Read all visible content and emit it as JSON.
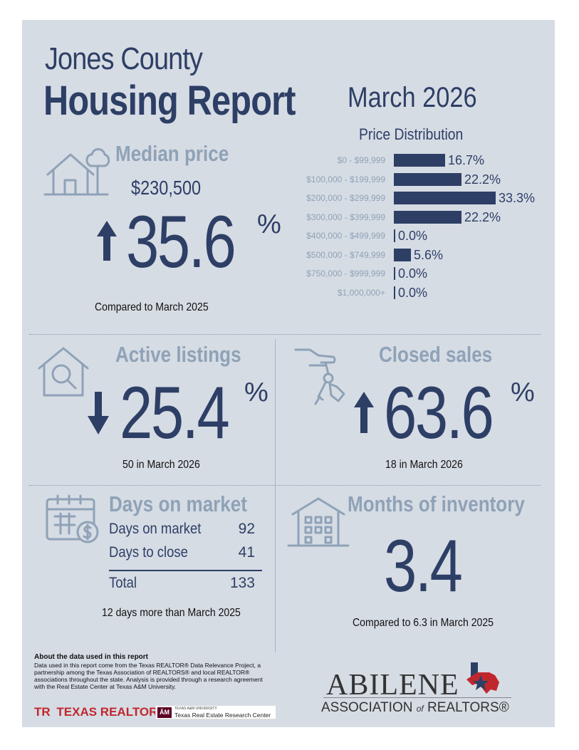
{
  "header": {
    "county": "Jones County",
    "report": "Housing Report",
    "period": "March 2026"
  },
  "median_price": {
    "title": "Median price",
    "value": "$230,500",
    "change": "35.6",
    "pct_sign": "%",
    "direction": "up",
    "note": "Compared to March 2025"
  },
  "chart_data": {
    "type": "bar",
    "orientation": "horizontal",
    "title": "Price Distribution",
    "categories": [
      "$0 - $99,999",
      "$100,000 - $199,999",
      "$200,000 - $299,999",
      "$300,000 - $399,999",
      "$400,000 - $499,999",
      "$500,000 - $749,999",
      "$750,000 - $999,999",
      "$1,000,000+"
    ],
    "values": [
      16.7,
      22.2,
      33.3,
      22.2,
      0.0,
      5.6,
      0.0,
      0.0
    ],
    "value_labels": [
      "16.7%",
      "22.2%",
      "33.3%",
      "22.2%",
      "0.0%",
      "5.6%",
      "0.0%",
      "0.0%"
    ],
    "xlim": [
      0,
      33.3
    ],
    "unit": "%"
  },
  "active_listings": {
    "title": "Active listings",
    "change": "25.4",
    "pct_sign": "%",
    "direction": "down",
    "note": "50 in March 2026"
  },
  "closed_sales": {
    "title": "Closed sales",
    "change": "63.6",
    "pct_sign": "%",
    "direction": "up",
    "note": "18 in March 2026"
  },
  "days_on_market": {
    "title": "Days on market",
    "rows": [
      {
        "label": "Days on market",
        "value": "92"
      },
      {
        "label": "Days to close",
        "value": "41"
      }
    ],
    "total_label": "Total",
    "total_value": "133",
    "note": "12 days more than March 2025"
  },
  "months_inventory": {
    "title": "Months of inventory",
    "value": "3.4",
    "note": "Compared to 6.3 in March 2025"
  },
  "footer": {
    "about_title": "About the data used in this report",
    "about_text": "Data used in this report come from the Texas REALTOR® Data Relevance Project, a partnership among the Texas Association of REALTORS® and local REALTOR® associations throughout the state. Analysis is provided through a research agreement with the Real Estate Center at Texas A&M University.",
    "texas_realtors_mark": "TR",
    "texas_realtors": "TEXAS REALTORS",
    "tamu_mark": "ĀM",
    "tamu_small": "TEXAS A&M UNIVERSITY",
    "tamu_center": "Texas Real Estate Research Center",
    "abilene": "ABILENE",
    "association_pre": "ASSOCIATION",
    "association_of": "of",
    "association_post": "REALTORS®"
  },
  "colors": {
    "navy": "#2e3f66",
    "muted": "#8fa2b7",
    "panel": "#d6dce4"
  },
  "icons": [
    "house-tree-icon",
    "arrow-up-icon",
    "house-search-icon",
    "arrow-down-icon",
    "hand-keys-icon",
    "calendar-dollar-icon",
    "apartment-building-icon",
    "texas-flag-icon"
  ]
}
